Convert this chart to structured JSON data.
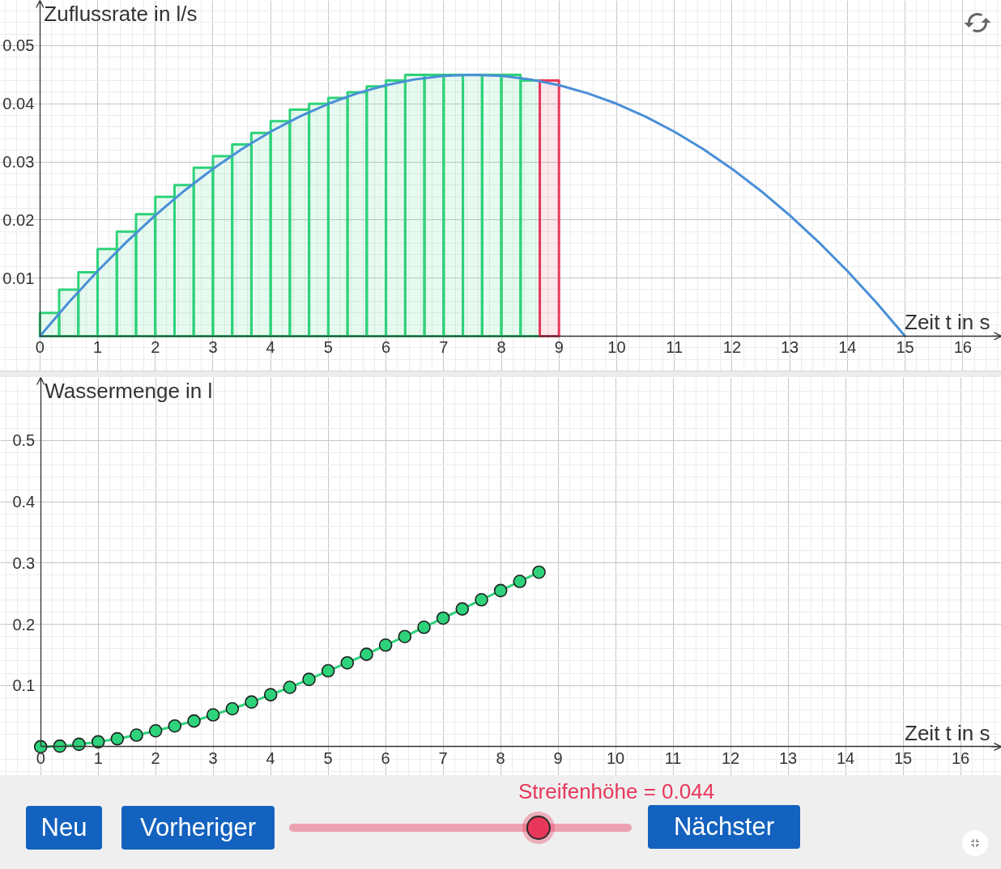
{
  "chart_data": [
    {
      "type": "bar",
      "xlabel": "Zeit t in s",
      "ylabel": "Zuflussrate in l/s",
      "xlim": [
        -0.685,
        16.67
      ],
      "ylim": [
        -0.006,
        0.0578
      ],
      "xticks": [
        0,
        1,
        2,
        3,
        4,
        5,
        6,
        7,
        8,
        9,
        10,
        11,
        12,
        13,
        14,
        15,
        16
      ],
      "yticks": [
        0.01,
        0.02,
        0.03,
        0.04,
        0.05
      ],
      "grid": true,
      "series": [
        {
          "type": "bar",
          "color": "#2ed27a",
          "x": [
            0.167,
            0.5,
            0.833,
            1.167,
            1.5,
            1.833,
            2.167,
            2.5,
            2.833,
            3.167,
            3.5,
            3.833,
            4.167,
            4.5,
            4.833,
            5.167,
            5.5,
            5.833,
            6.167,
            6.5,
            6.833,
            7.167,
            7.5,
            7.833,
            8.167,
            8.5
          ],
          "values": [
            0.004,
            0.008,
            0.011,
            0.015,
            0.018,
            0.021,
            0.024,
            0.026,
            0.029,
            0.031,
            0.033,
            0.035,
            0.037,
            0.039,
            0.04,
            0.041,
            0.042,
            0.043,
            0.044,
            0.045,
            0.045,
            0.045,
            0.045,
            0.045,
            0.045,
            0.044
          ]
        },
        {
          "type": "bar",
          "color": "#e8375a",
          "x": [
            8.833
          ],
          "values": [
            0.044
          ]
        },
        {
          "type": "line",
          "color": "#4a8fd8",
          "x": [
            0,
            0.5,
            1,
            1.5,
            2,
            2.5,
            3,
            3.5,
            4,
            4.5,
            5,
            5.5,
            6,
            6.5,
            7,
            7.5,
            8,
            8.5,
            9,
            9.5,
            10,
            10.5,
            11,
            11.5,
            12,
            12.5,
            13,
            13.5,
            14,
            14.5,
            15
          ],
          "values": [
            0,
            0.0058,
            0.0112,
            0.0162,
            0.0208,
            0.025,
            0.0288,
            0.0322,
            0.0352,
            0.0378,
            0.04,
            0.0418,
            0.0432,
            0.0442,
            0.0448,
            0.045,
            0.0448,
            0.0442,
            0.0432,
            0.0418,
            0.04,
            0.0378,
            0.0352,
            0.0322,
            0.0288,
            0.025,
            0.0208,
            0.0162,
            0.0112,
            0.0058,
            0
          ]
        }
      ]
    },
    {
      "type": "line",
      "xlabel": "Zeit t in s",
      "ylabel": "Wassermenge in l",
      "xlim": [
        -0.7,
        16.71
      ],
      "ylim": [
        -0.047,
        0.603
      ],
      "xticks": [
        0,
        1,
        2,
        3,
        4,
        5,
        6,
        7,
        8,
        9,
        10,
        11,
        12,
        13,
        14,
        15,
        16
      ],
      "yticks": [
        0.1,
        0.2,
        0.3,
        0.4,
        0.5
      ],
      "grid": true,
      "marker": "circle",
      "series": [
        {
          "color": "#2ed27a",
          "x": [
            0,
            0.333,
            0.667,
            1,
            1.333,
            1.667,
            2,
            2.333,
            2.667,
            3,
            3.333,
            3.667,
            4,
            4.333,
            4.667,
            5,
            5.333,
            5.667,
            6,
            6.333,
            6.667,
            7,
            7.333,
            7.667,
            8,
            8.333,
            8.667
          ],
          "values": [
            0,
            0.001,
            0.004,
            0.008,
            0.013,
            0.019,
            0.026,
            0.034,
            0.042,
            0.052,
            0.062,
            0.073,
            0.085,
            0.097,
            0.11,
            0.124,
            0.137,
            0.151,
            0.166,
            0.18,
            0.195,
            0.21,
            0.225,
            0.24,
            0.255,
            0.27,
            0.285
          ]
        }
      ]
    },
    {
      "type": "other",
      "annotations": [
        "Streifenhöhe = 0.044",
        "Neu",
        "Vorheriger",
        "Nächster"
      ]
    }
  ]
}
